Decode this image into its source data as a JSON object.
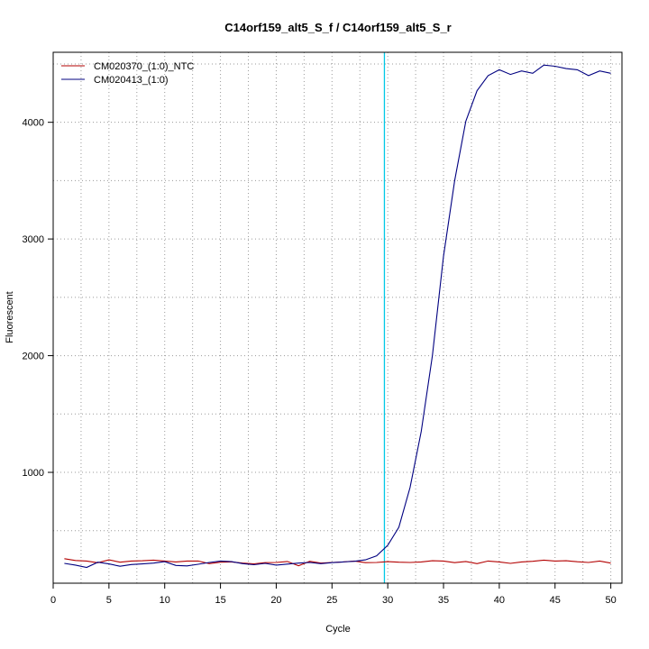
{
  "chart_data": {
    "type": "line",
    "title": "C14orf159_alt5_S_f / C14orf159_alt5_S_r",
    "xlabel": "Cycle",
    "ylabel": "Fluorescent",
    "xlim": [
      0,
      51
    ],
    "ylim": [
      50,
      4600
    ],
    "x_ticks": [
      0,
      5,
      10,
      15,
      20,
      25,
      30,
      35,
      40,
      45,
      50
    ],
    "y_ticks": [
      1000,
      2000,
      3000,
      4000
    ],
    "grid": true,
    "legend_position": "top-left",
    "threshold_cycle": 29.7,
    "threshold_color": "#00c8e6",
    "x": [
      1,
      2,
      3,
      4,
      5,
      6,
      7,
      8,
      9,
      10,
      11,
      12,
      13,
      14,
      15,
      16,
      17,
      18,
      19,
      20,
      21,
      22,
      23,
      24,
      25,
      26,
      27,
      28,
      29,
      30,
      31,
      32,
      33,
      34,
      35,
      36,
      37,
      38,
      39,
      40,
      41,
      42,
      43,
      44,
      45,
      46,
      47,
      48,
      49,
      50
    ],
    "series": [
      {
        "name": "CM020370_(1:0)_NTC",
        "color": "#b30000",
        "values": [
          260,
          245,
          240,
          225,
          250,
          230,
          240,
          242,
          248,
          240,
          232,
          240,
          240,
          218,
          230,
          232,
          222,
          216,
          226,
          228,
          236,
          200,
          238,
          222,
          228,
          232,
          240,
          226,
          228,
          235,
          230,
          228,
          232,
          242,
          240,
          226,
          236,
          218,
          240,
          232,
          220,
          232,
          238,
          248,
          240,
          242,
          234,
          228,
          240,
          222
        ]
      },
      {
        "name": "CM020413_(1:0)",
        "color": "#000080",
        "values": [
          220,
          205,
          185,
          230,
          215,
          195,
          210,
          215,
          222,
          235,
          202,
          198,
          212,
          228,
          240,
          235,
          218,
          208,
          220,
          205,
          214,
          222,
          228,
          218,
          226,
          232,
          238,
          250,
          285,
          375,
          530,
          870,
          1350,
          2000,
          2850,
          3500,
          4010,
          4270,
          4400,
          4450,
          4410,
          4440,
          4420,
          4490,
          4480,
          4460,
          4450,
          4400,
          4440,
          4420
        ]
      }
    ]
  }
}
